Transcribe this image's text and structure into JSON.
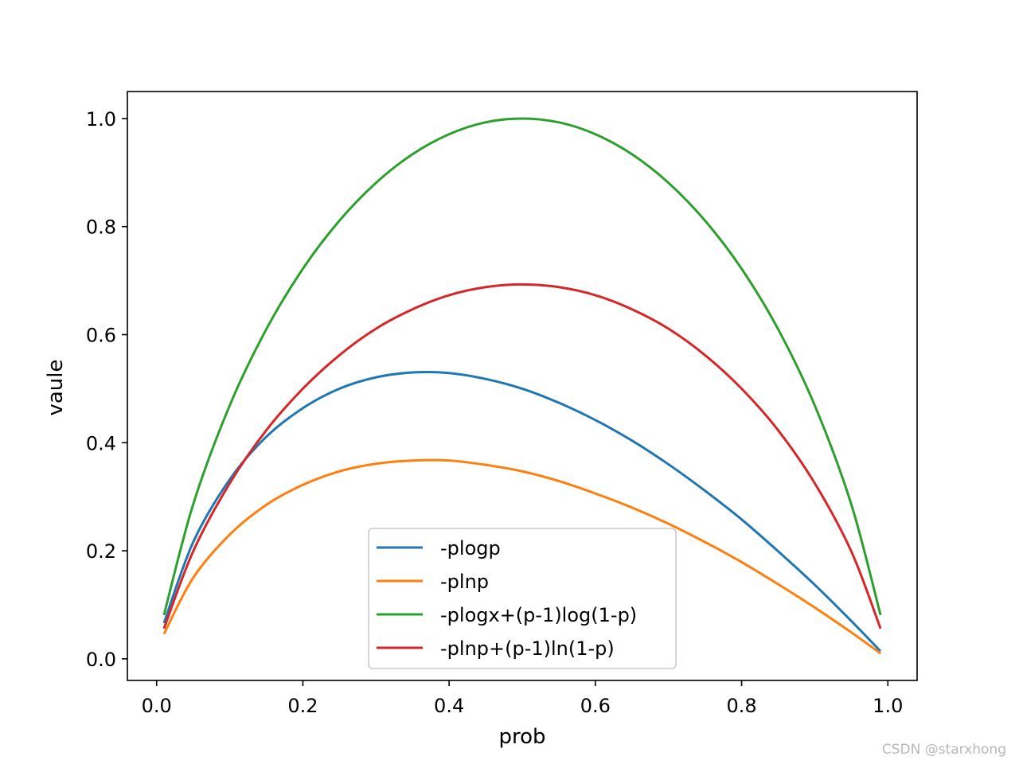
{
  "chart_data": {
    "type": "line",
    "title": "",
    "xlabel": "prob",
    "ylabel": "vaule",
    "xlim": [
      -0.04,
      1.04
    ],
    "ylim": [
      -0.04,
      1.05
    ],
    "xticks": [
      0.0,
      0.2,
      0.4,
      0.6,
      0.8,
      1.0
    ],
    "xtick_labels": [
      "0.0",
      "0.2",
      "0.4",
      "0.6",
      "0.8",
      "1.0"
    ],
    "yticks": [
      0.0,
      0.2,
      0.4,
      0.6,
      0.8,
      1.0
    ],
    "ytick_labels": [
      "0.0",
      "0.2",
      "0.4",
      "0.6",
      "0.8",
      "1.0"
    ],
    "grid": false,
    "legend_position": "lower center",
    "x": [
      0.01,
      0.05,
      0.1,
      0.15,
      0.2,
      0.25,
      0.3,
      0.35,
      0.4,
      0.45,
      0.5,
      0.55,
      0.6,
      0.65,
      0.7,
      0.75,
      0.8,
      0.85,
      0.9,
      0.95,
      0.99
    ],
    "series": [
      {
        "name": "-plogp",
        "color": "#1f77b4",
        "values": [
          0.066,
          0.216,
          0.332,
          0.411,
          0.464,
          0.5,
          0.521,
          0.53,
          0.529,
          0.518,
          0.5,
          0.474,
          0.442,
          0.404,
          0.36,
          0.311,
          0.258,
          0.199,
          0.137,
          0.07,
          0.014
        ]
      },
      {
        "name": "-plnp",
        "color": "#ff7f0e",
        "values": [
          0.046,
          0.15,
          0.23,
          0.285,
          0.322,
          0.347,
          0.361,
          0.367,
          0.367,
          0.359,
          0.347,
          0.329,
          0.306,
          0.28,
          0.25,
          0.216,
          0.179,
          0.138,
          0.095,
          0.049,
          0.01
        ]
      },
      {
        "name": "-plogx+(p-1)log(1-p)",
        "color": "#2ca02c",
        "values": [
          0.081,
          0.286,
          0.469,
          0.61,
          0.722,
          0.811,
          0.881,
          0.934,
          0.971,
          0.993,
          1.0,
          0.993,
          0.971,
          0.934,
          0.881,
          0.811,
          0.722,
          0.61,
          0.469,
          0.286,
          0.081
        ]
      },
      {
        "name": "-plnp+(p-1)ln(1-p)",
        "color": "#d62728",
        "values": [
          0.056,
          0.199,
          0.325,
          0.423,
          0.5,
          0.562,
          0.611,
          0.647,
          0.673,
          0.688,
          0.693,
          0.688,
          0.673,
          0.647,
          0.611,
          0.562,
          0.5,
          0.423,
          0.325,
          0.199,
          0.056
        ]
      }
    ]
  },
  "watermark": "CSDN @starxhong"
}
